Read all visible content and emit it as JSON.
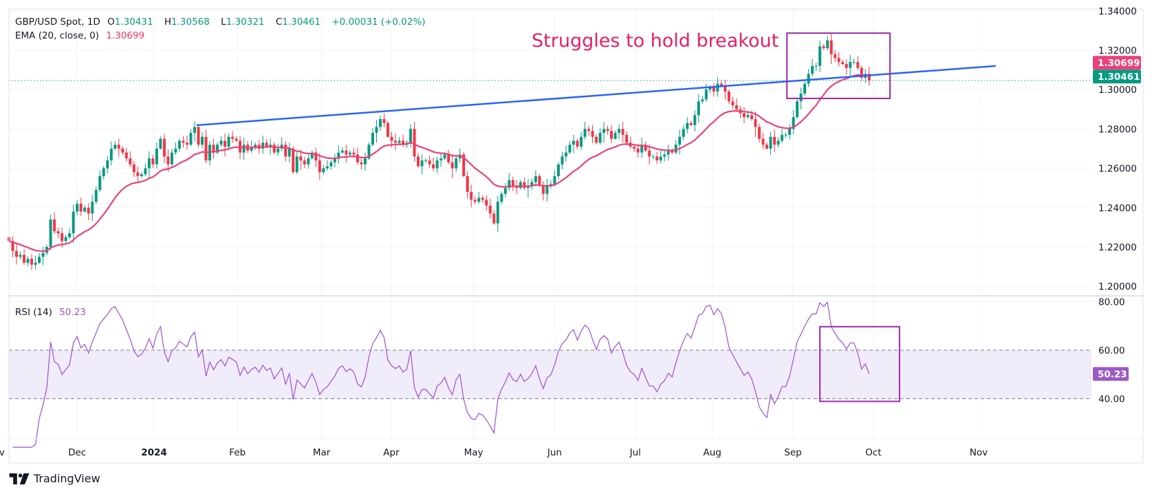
{
  "header": {
    "symbol": "GBP/USD Spot, 1D",
    "o_label": "O",
    "o": "1.30431",
    "h_label": "H",
    "h": "1.30568",
    "l_label": "L",
    "l": "1.30321",
    "c_label": "C",
    "c": "1.30461",
    "change": "+0.00031 (+0.02%)",
    "ema_label": "EMA (20, close, 0)",
    "ema_value": "1.30699"
  },
  "rsi_legend": {
    "label": "RSI (14)",
    "value": "50.23"
  },
  "annotation": "Struggles to hold breakout",
  "brand": "TradingView",
  "colors": {
    "up": "#089981",
    "down": "#f23645",
    "ema": "#ec407a",
    "trend": "#2962ff",
    "box": "#9c27b0",
    "rsi": "#9c4fd6",
    "annotation": "#e91e63"
  },
  "chart_data": [
    {
      "type": "candlestick",
      "title": "GBP/USD Spot, 1D",
      "price_axis": {
        "ylim": [
          1.19,
          1.345
        ],
        "ticks": [
          "1.34000",
          "1.32000",
          "1.30000",
          "1.28000",
          "1.26000",
          "1.24000",
          "1.22000",
          "1.20000"
        ],
        "tick_values": [
          1.34,
          1.32,
          1.3,
          1.28,
          1.26,
          1.24,
          1.22,
          1.2
        ]
      },
      "time_axis": {
        "ticks": [
          "Nov",
          "Dec",
          "2024",
          "Feb",
          "Mar",
          "Apr",
          "May",
          "Jun",
          "Jul",
          "Aug",
          "Sep",
          "Oct",
          "Nov"
        ],
        "tick_bars": [
          -3.5,
          18,
          38.3,
          60.3,
          82.5,
          100.9,
          122.6,
          144,
          165.3,
          185.6,
          206.9,
          228.1,
          255.9
        ]
      },
      "close": [
        1.223,
        1.218,
        1.215,
        1.216,
        1.212,
        1.214,
        1.211,
        1.212,
        1.215,
        1.217,
        1.22,
        1.234,
        1.228,
        1.227,
        1.223,
        1.225,
        1.227,
        1.238,
        1.242,
        1.238,
        1.24,
        1.237,
        1.243,
        1.249,
        1.256,
        1.26,
        1.264,
        1.27,
        1.272,
        1.27,
        1.268,
        1.265,
        1.262,
        1.258,
        1.256,
        1.257,
        1.26,
        1.265,
        1.262,
        1.27,
        1.275,
        1.266,
        1.262,
        1.268,
        1.27,
        1.274,
        1.273,
        1.272,
        1.278,
        1.281,
        1.272,
        1.276,
        1.264,
        1.272,
        1.268,
        1.272,
        1.274,
        1.271,
        1.276,
        1.275,
        1.274,
        1.268,
        1.272,
        1.269,
        1.271,
        1.272,
        1.27,
        1.273,
        1.271,
        1.272,
        1.268,
        1.27,
        1.272,
        1.266,
        1.27,
        1.258,
        1.266,
        1.264,
        1.262,
        1.265,
        1.268,
        1.264,
        1.258,
        1.26,
        1.261,
        1.263,
        1.265,
        1.268,
        1.269,
        1.267,
        1.268,
        1.267,
        1.263,
        1.262,
        1.265,
        1.272,
        1.278,
        1.281,
        1.285,
        1.283,
        1.276,
        1.274,
        1.273,
        1.274,
        1.272,
        1.273,
        1.28,
        1.266,
        1.261,
        1.264,
        1.264,
        1.262,
        1.26,
        1.264,
        1.265,
        1.267,
        1.263,
        1.26,
        1.265,
        1.267,
        1.256,
        1.248,
        1.244,
        1.243,
        1.245,
        1.244,
        1.241,
        1.237,
        1.232,
        1.243,
        1.247,
        1.25,
        1.254,
        1.251,
        1.25,
        1.253,
        1.25,
        1.251,
        1.253,
        1.256,
        1.251,
        1.247,
        1.251,
        1.252,
        1.256,
        1.262,
        1.266,
        1.268,
        1.272,
        1.274,
        1.271,
        1.276,
        1.28,
        1.279,
        1.276,
        1.273,
        1.278,
        1.28,
        1.279,
        1.275,
        1.278,
        1.28,
        1.277,
        1.273,
        1.271,
        1.27,
        1.268,
        1.272,
        1.269,
        1.266,
        1.266,
        1.264,
        1.266,
        1.267,
        1.269,
        1.268,
        1.272,
        1.276,
        1.28,
        1.283,
        1.282,
        1.287,
        1.294,
        1.295,
        1.3,
        1.301,
        1.299,
        1.303,
        1.302,
        1.299,
        1.294,
        1.292,
        1.29,
        1.288,
        1.286,
        1.287,
        1.285,
        1.281,
        1.275,
        1.272,
        1.27,
        1.276,
        1.272,
        1.274,
        1.277,
        1.277,
        1.28,
        1.286,
        1.294,
        1.298,
        1.303,
        1.308,
        1.312,
        1.312,
        1.322,
        1.321,
        1.325,
        1.318,
        1.316,
        1.314,
        1.313,
        1.311,
        1.314,
        1.314,
        1.311,
        1.306,
        1.308,
        1.30461
      ],
      "last_price": {
        "value": 1.30461,
        "label": "1.30461"
      },
      "ema": {
        "period": 20,
        "last": 1.30699,
        "label": "1.30699"
      },
      "trendline": {
        "start": {
          "bar": 49.5,
          "price": 1.2819
        },
        "end": {
          "bar": 260.4,
          "price": 1.312
        }
      },
      "highlight_box": {
        "bars": [
          205.3,
          232.5
        ],
        "prices": [
          1.2955,
          1.3287
        ]
      }
    },
    {
      "type": "line",
      "title": "RSI (14)",
      "ylim": [
        14,
        82
      ],
      "ticks": [
        "80.00",
        "60.00",
        "40.00"
      ],
      "tick_values": [
        80,
        60,
        40
      ],
      "band": [
        40,
        60
      ],
      "last": {
        "value": 50.23,
        "label": "50.23"
      },
      "period": 14,
      "highlight_box": {
        "bars": [
          214,
          235
        ],
        "values": [
          38.9,
          69.7
        ]
      }
    }
  ]
}
